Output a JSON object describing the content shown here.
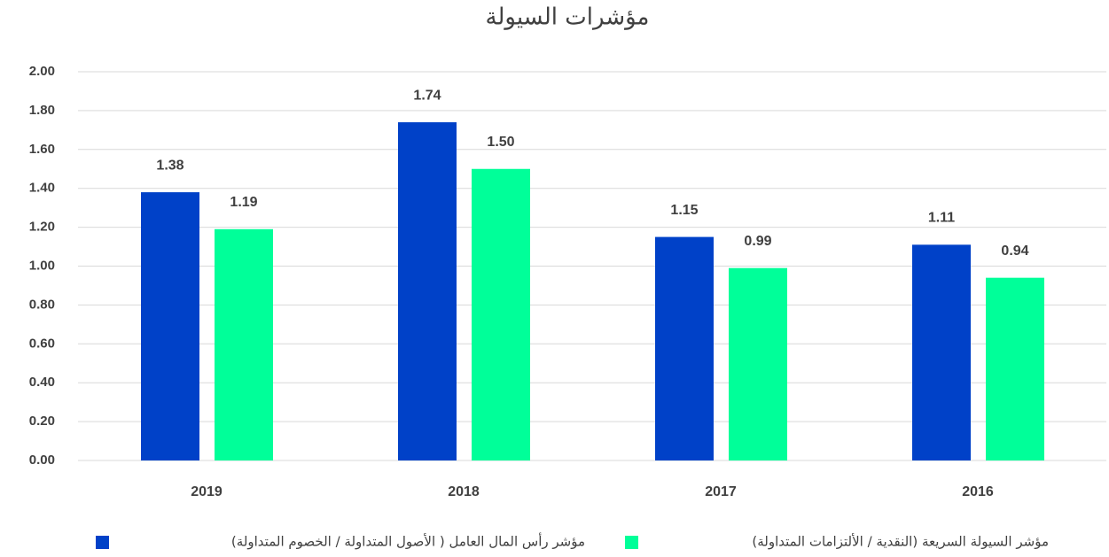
{
  "chart_data": {
    "type": "bar",
    "title": "مؤشرات السيولة",
    "categories": [
      "2019",
      "2018",
      "2017",
      "2016"
    ],
    "series": [
      {
        "name": "مؤشر رأس المال العامل ( الأصول المتداولة / الخصوم المتداولة)",
        "color": "#0041c8",
        "values": [
          1.38,
          1.74,
          1.15,
          1.11
        ],
        "value_labels": [
          "1.38",
          "1.74",
          "1.15",
          "1.11"
        ]
      },
      {
        "name": "مؤشر السيولة السريعة (النقدية / الألتزامات المتداولة)",
        "color": "#00ff99",
        "values": [
          1.19,
          1.5,
          0.99,
          0.94
        ],
        "value_labels": [
          "1.19",
          "1.50",
          "0.99",
          "0.94"
        ]
      }
    ],
    "ylim": [
      0,
      2
    ],
    "yticks": [
      {
        "value": 0,
        "label": "0.00"
      },
      {
        "value": 0.2,
        "label": "0.20"
      },
      {
        "value": 0.4,
        "label": "0.40"
      },
      {
        "value": 0.6,
        "label": "0.60"
      },
      {
        "value": 0.8,
        "label": "0.80"
      },
      {
        "value": 1,
        "label": "1.00"
      },
      {
        "value": 1.2,
        "label": "1.20"
      },
      {
        "value": 1.4,
        "label": "1.40"
      },
      {
        "value": 1.6,
        "label": "1.60"
      },
      {
        "value": 1.8,
        "label": "1.80"
      },
      {
        "value": 2,
        "label": "2.00"
      }
    ],
    "grid": true,
    "legend": "bottom"
  }
}
